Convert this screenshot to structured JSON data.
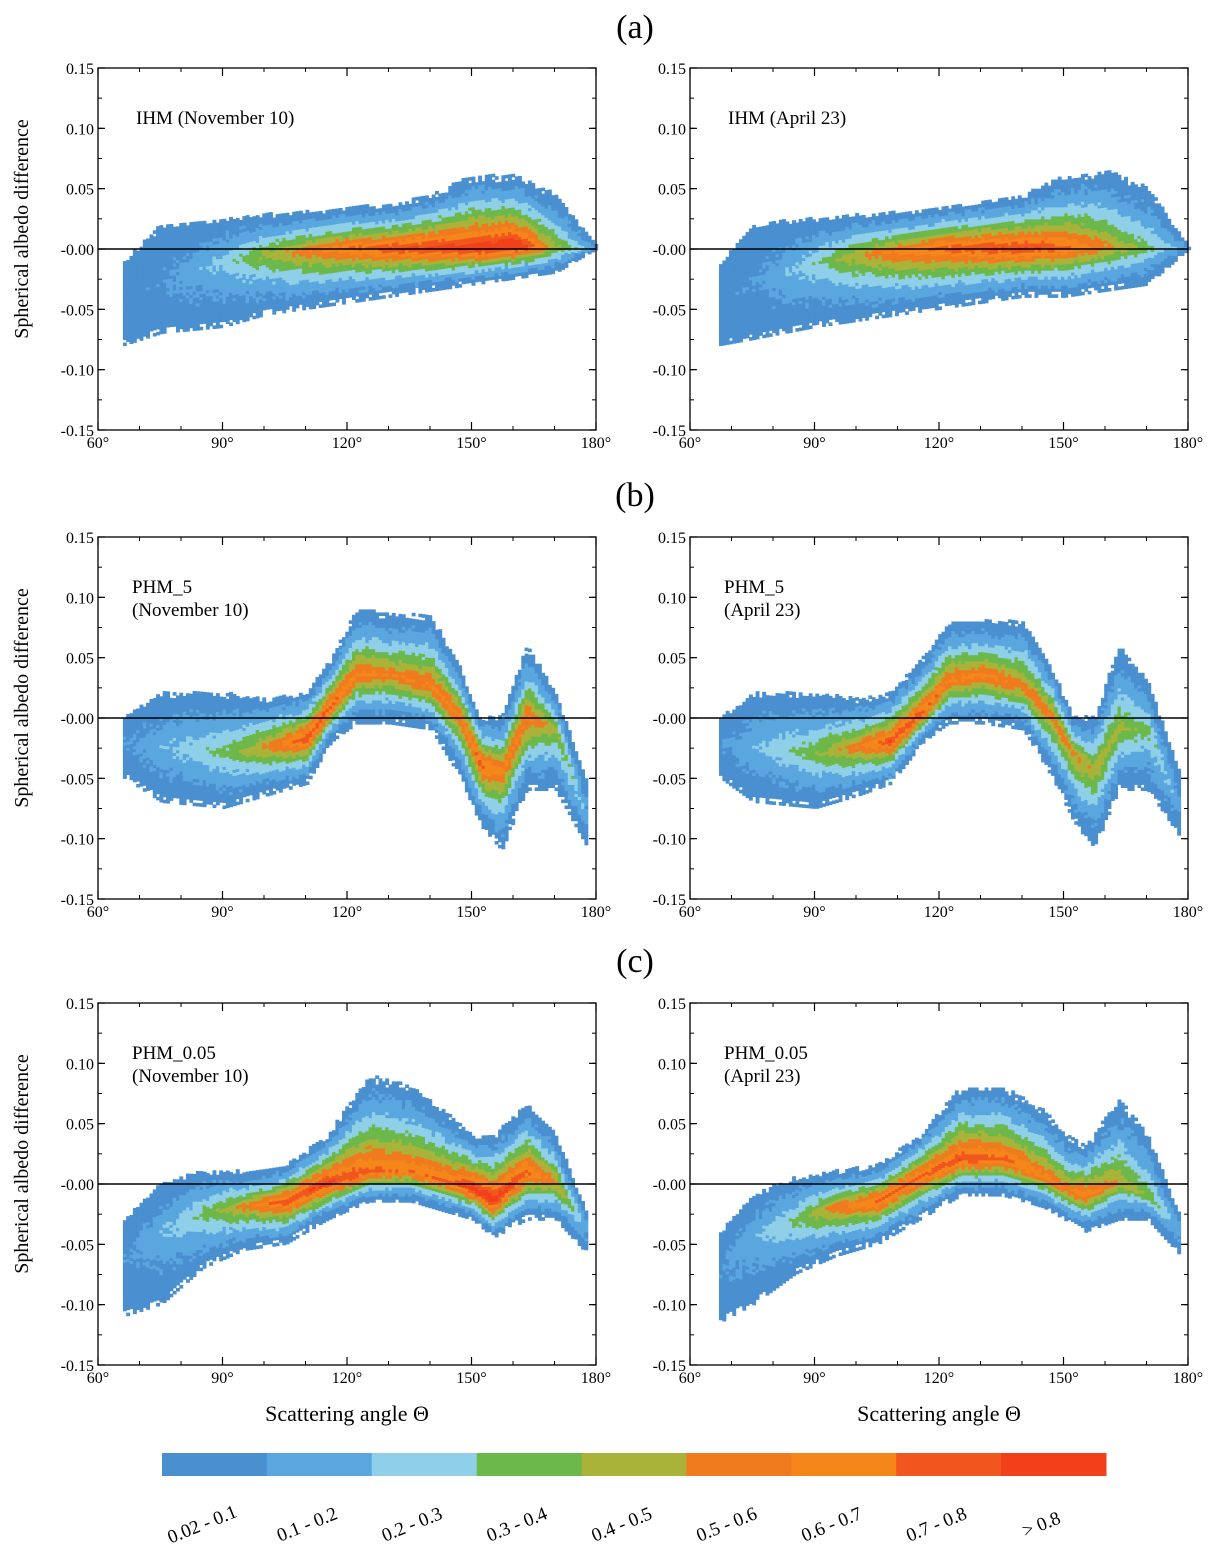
{
  "figure": {
    "row_labels": [
      "(a)",
      "(b)",
      "(c)"
    ],
    "ylabel": "Spherical albedo difference",
    "xlabel": "Scattering angle Θ",
    "x_tick_labels": [
      "60°",
      "90°",
      "120°",
      "150°",
      "180°"
    ],
    "y_tick_labels": [
      "0.15",
      "0.10",
      "0.05",
      "-0.00",
      "-0.05",
      "-0.10",
      "-0.15"
    ]
  },
  "colorbar": {
    "labels": [
      "0.02 - 0.1",
      "0.1 - 0.2",
      "0.2 - 0.3",
      "0.3 - 0.4",
      "0.4 - 0.5",
      "0.5 - 0.6",
      "0.6 - 0.7",
      "0.7 - 0.8",
      "> 0.8"
    ],
    "colors": [
      "#4a8fd0",
      "#5aa7e0",
      "#8fd0e8",
      "#6cb84a",
      "#a9b33a",
      "#f07a1e",
      "#f5861a",
      "#f0561e",
      "#f2401a"
    ]
  },
  "chart_data": [
    {
      "type": "heatmap",
      "panel": "a-left",
      "label_lines": [
        "IHM (November 10)"
      ],
      "xlim": [
        60,
        180
      ],
      "ylim": [
        -0.15,
        0.15
      ],
      "xticks": [
        60,
        90,
        120,
        150,
        180
      ],
      "yticks": [
        0.15,
        0.1,
        0.05,
        0.0,
        -0.05,
        -0.1,
        -0.15
      ],
      "zero_line": true,
      "density_profile": {
        "x": [
          66,
          75,
          90,
          100,
          110,
          120,
          130,
          140,
          150,
          160,
          170,
          180
        ],
        "center": [
          -0.04,
          -0.03,
          -0.01,
          -0.005,
          -0.002,
          0.0,
          0.0,
          0.0,
          0.0,
          0.002,
          0.0,
          0.0
        ],
        "upper": [
          -0.01,
          0.02,
          0.025,
          0.028,
          0.03,
          0.035,
          0.035,
          0.045,
          0.06,
          0.06,
          0.045,
          0.0
        ],
        "lower": [
          -0.08,
          -0.07,
          -0.065,
          -0.055,
          -0.05,
          -0.045,
          -0.04,
          -0.035,
          -0.03,
          -0.025,
          -0.02,
          0.0
        ],
        "peak": [
          0.02,
          0.05,
          0.2,
          0.4,
          0.55,
          0.65,
          0.75,
          0.8,
          0.85,
          0.9,
          0.4,
          0.1
        ]
      }
    },
    {
      "type": "heatmap",
      "panel": "a-right",
      "label_lines": [
        "IHM (April 23)"
      ],
      "xlim": [
        60,
        180
      ],
      "ylim": [
        -0.15,
        0.15
      ],
      "xticks": [
        60,
        90,
        120,
        150,
        180
      ],
      "yticks": [
        0.15,
        0.1,
        0.05,
        0.0,
        -0.05,
        -0.1,
        -0.15
      ],
      "zero_line": true,
      "density_profile": {
        "x": [
          67,
          75,
          90,
          100,
          110,
          120,
          130,
          140,
          150,
          160,
          170,
          180
        ],
        "center": [
          -0.045,
          -0.03,
          -0.012,
          -0.006,
          -0.003,
          0.0,
          0.0,
          0.0,
          0.0,
          0.0,
          0.0,
          0.0
        ],
        "upper": [
          -0.01,
          0.02,
          0.025,
          0.028,
          0.03,
          0.035,
          0.04,
          0.045,
          0.06,
          0.065,
          0.05,
          0.0
        ],
        "lower": [
          -0.08,
          -0.075,
          -0.065,
          -0.06,
          -0.055,
          -0.05,
          -0.045,
          -0.04,
          -0.04,
          -0.035,
          -0.03,
          0.0
        ],
        "peak": [
          0.02,
          0.05,
          0.25,
          0.45,
          0.6,
          0.7,
          0.75,
          0.78,
          0.7,
          0.5,
          0.3,
          0.1
        ]
      }
    },
    {
      "type": "heatmap",
      "panel": "b-left",
      "label_lines": [
        "PHM_5",
        "(November 10)"
      ],
      "xlim": [
        60,
        180
      ],
      "ylim": [
        -0.15,
        0.15
      ],
      "xticks": [
        60,
        90,
        120,
        150,
        180
      ],
      "yticks": [
        0.15,
        0.1,
        0.05,
        0.0,
        -0.05,
        -0.1,
        -0.15
      ],
      "zero_line": true,
      "density_profile": {
        "x": [
          66,
          75,
          90,
          100,
          110,
          116,
          122,
          130,
          140,
          147,
          152,
          157,
          163,
          170,
          178
        ],
        "center": [
          -0.02,
          -0.025,
          -0.03,
          -0.025,
          -0.018,
          0.01,
          0.035,
          0.035,
          0.025,
          0.0,
          -0.04,
          -0.045,
          0.0,
          -0.01,
          -0.09
        ],
        "upper": [
          0.0,
          0.02,
          0.02,
          0.015,
          0.02,
          0.05,
          0.09,
          0.085,
          0.085,
          0.04,
          0.0,
          0.0,
          0.06,
          0.02,
          -0.06
        ],
        "lower": [
          -0.05,
          -0.07,
          -0.075,
          -0.065,
          -0.055,
          -0.02,
          -0.005,
          -0.005,
          -0.01,
          -0.05,
          -0.09,
          -0.11,
          -0.06,
          -0.06,
          -0.11
        ],
        "peak": [
          0.05,
          0.15,
          0.3,
          0.5,
          0.75,
          0.7,
          0.6,
          0.55,
          0.6,
          0.6,
          0.7,
          0.6,
          0.6,
          0.4,
          0.1
        ]
      }
    },
    {
      "type": "heatmap",
      "panel": "b-right",
      "label_lines": [
        "PHM_5",
        "(April 23)"
      ],
      "xlim": [
        60,
        180
      ],
      "ylim": [
        -0.15,
        0.15
      ],
      "xticks": [
        60,
        90,
        120,
        150,
        180
      ],
      "yticks": [
        0.15,
        0.1,
        0.05,
        0.0,
        -0.05,
        -0.1,
        -0.15
      ],
      "zero_line": true,
      "density_profile": {
        "x": [
          67,
          75,
          90,
          100,
          108,
          116,
          122,
          130,
          140,
          147,
          152,
          157,
          163,
          170,
          178
        ],
        "center": [
          -0.02,
          -0.025,
          -0.03,
          -0.025,
          -0.02,
          0.005,
          0.03,
          0.035,
          0.025,
          0.0,
          -0.03,
          -0.045,
          -0.01,
          -0.01,
          -0.08
        ],
        "upper": [
          0.0,
          0.02,
          0.02,
          0.015,
          0.02,
          0.05,
          0.08,
          0.08,
          0.08,
          0.04,
          0.0,
          0.0,
          0.06,
          0.03,
          -0.05
        ],
        "lower": [
          -0.05,
          -0.07,
          -0.075,
          -0.065,
          -0.055,
          -0.02,
          -0.005,
          -0.005,
          -0.01,
          -0.05,
          -0.085,
          -0.11,
          -0.06,
          -0.06,
          -0.1
        ],
        "peak": [
          0.05,
          0.15,
          0.35,
          0.55,
          0.75,
          0.7,
          0.6,
          0.6,
          0.55,
          0.55,
          0.5,
          0.45,
          0.4,
          0.3,
          0.1
        ]
      }
    },
    {
      "type": "heatmap",
      "panel": "c-left",
      "label_lines": [
        "PHM_0.05",
        "(November 10)"
      ],
      "xlim": [
        60,
        180
      ],
      "ylim": [
        -0.15,
        0.15
      ],
      "xticks": [
        60,
        90,
        120,
        150,
        180
      ],
      "yticks": [
        0.15,
        0.1,
        0.05,
        0.0,
        -0.05,
        -0.1,
        -0.15
      ],
      "zero_line": true,
      "density_profile": {
        "x": [
          66,
          75,
          85,
          95,
          105,
          115,
          125,
          135,
          145,
          150,
          155,
          163,
          170,
          178
        ],
        "center": [
          -0.06,
          -0.04,
          -0.025,
          -0.02,
          -0.015,
          0.0,
          0.01,
          0.01,
          0.0,
          -0.005,
          -0.015,
          0.01,
          0.0,
          -0.04
        ],
        "upper": [
          -0.03,
          0.0,
          0.01,
          0.01,
          0.015,
          0.04,
          0.09,
          0.08,
          0.055,
          0.04,
          0.04,
          0.065,
          0.04,
          -0.03
        ],
        "lower": [
          -0.11,
          -0.1,
          -0.07,
          -0.055,
          -0.05,
          -0.03,
          -0.015,
          -0.015,
          -0.025,
          -0.03,
          -0.045,
          -0.03,
          -0.03,
          -0.06
        ],
        "peak": [
          0.05,
          0.15,
          0.3,
          0.5,
          0.75,
          0.8,
          0.7,
          0.65,
          0.7,
          0.85,
          0.85,
          0.7,
          0.5,
          0.1
        ]
      }
    },
    {
      "type": "heatmap",
      "panel": "c-right",
      "label_lines": [
        "PHM_0.05",
        "(April 23)"
      ],
      "xlim": [
        60,
        180
      ],
      "ylim": [
        -0.15,
        0.15
      ],
      "xticks": [
        60,
        90,
        120,
        150,
        180
      ],
      "yticks": [
        0.15,
        0.1,
        0.05,
        0.0,
        -0.05,
        -0.1,
        -0.15
      ],
      "zero_line": true,
      "density_profile": {
        "x": [
          67,
          75,
          85,
          95,
          105,
          115,
          125,
          135,
          145,
          150,
          155,
          163,
          170,
          178
        ],
        "center": [
          -0.07,
          -0.045,
          -0.03,
          -0.02,
          -0.015,
          0.005,
          0.02,
          0.02,
          0.005,
          -0.005,
          -0.01,
          0.0,
          -0.01,
          -0.04
        ],
        "upper": [
          -0.04,
          -0.01,
          0.005,
          0.01,
          0.015,
          0.04,
          0.08,
          0.08,
          0.06,
          0.04,
          0.03,
          0.07,
          0.04,
          -0.03
        ],
        "lower": [
          -0.115,
          -0.1,
          -0.075,
          -0.06,
          -0.05,
          -0.03,
          -0.01,
          -0.01,
          -0.02,
          -0.03,
          -0.04,
          -0.03,
          -0.03,
          -0.06
        ],
        "peak": [
          0.05,
          0.15,
          0.3,
          0.55,
          0.7,
          0.7,
          0.75,
          0.7,
          0.6,
          0.55,
          0.65,
          0.45,
          0.35,
          0.1
        ]
      }
    }
  ]
}
